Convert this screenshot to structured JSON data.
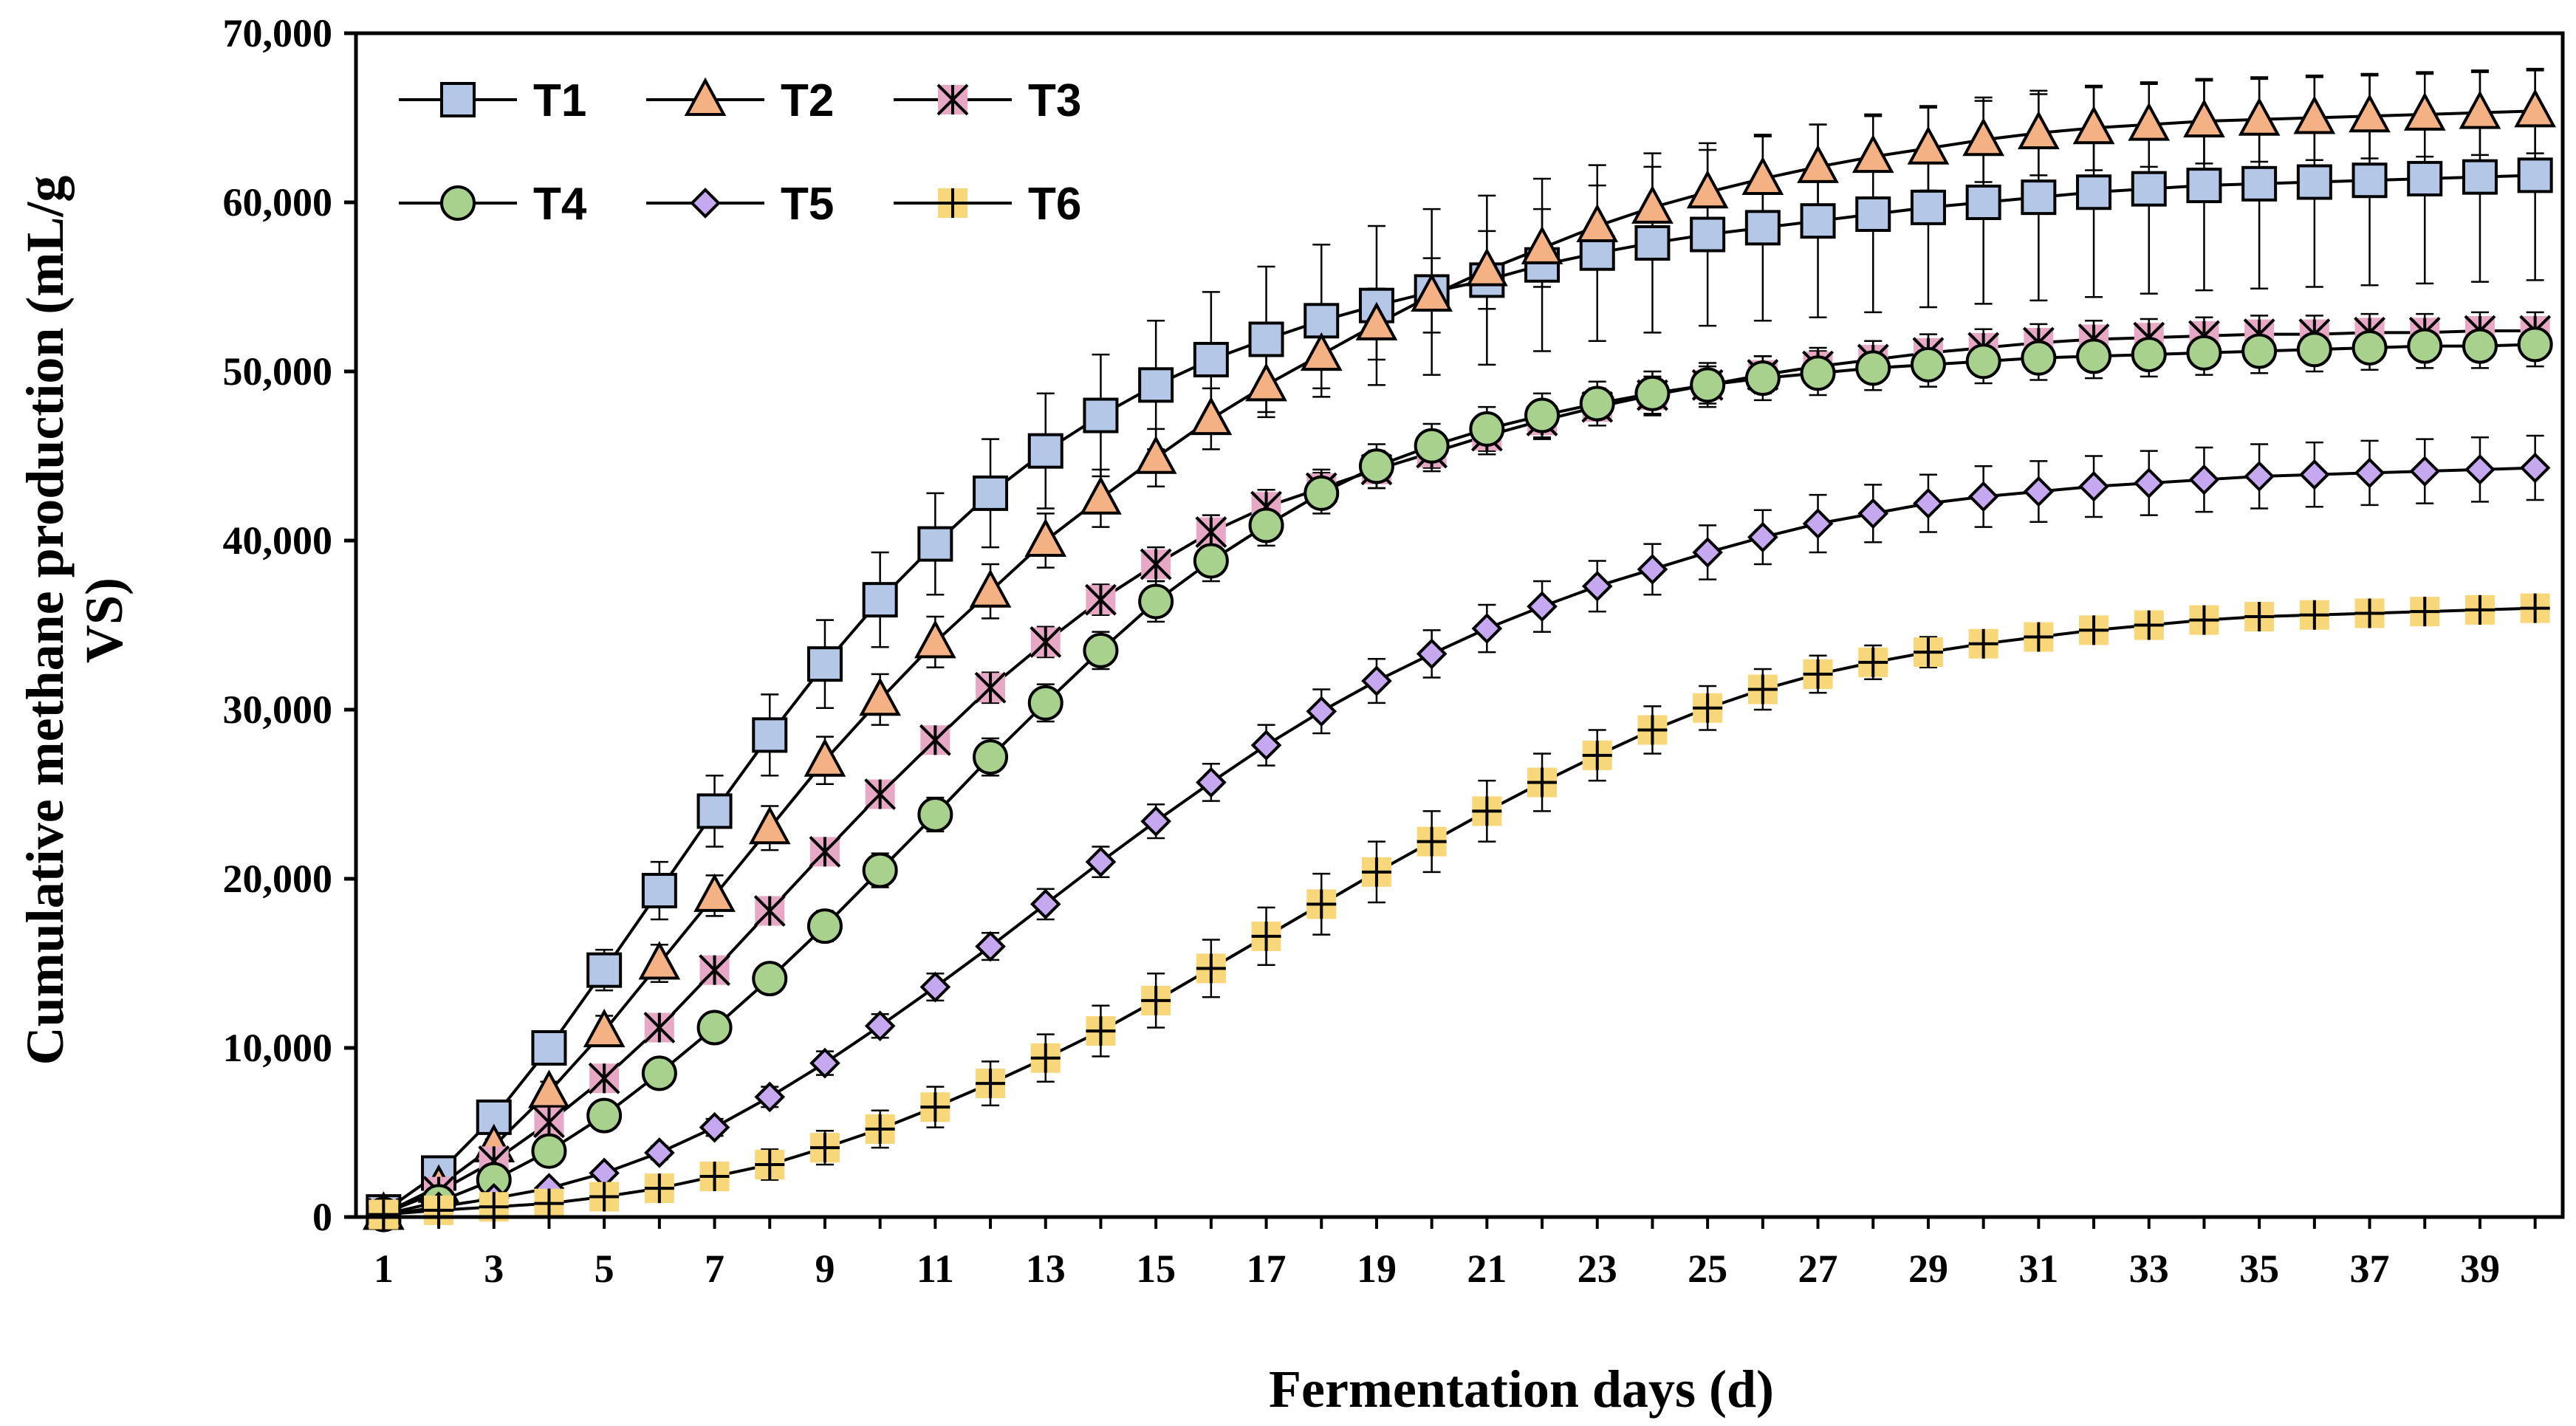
{
  "chart_data": {
    "type": "line",
    "title": "",
    "xlabel": "Fermentation days (d)",
    "ylabel_lines": [
      "Cumulative methane production (mL/g",
      "VS)"
    ],
    "xlim": [
      0.5,
      40.5
    ],
    "ylim": [
      0,
      70000
    ],
    "x_ticks": [
      1,
      3,
      5,
      7,
      9,
      11,
      13,
      15,
      17,
      19,
      21,
      23,
      25,
      27,
      29,
      31,
      33,
      35,
      37,
      39
    ],
    "x_tick_labels": [
      "1",
      "3",
      "5",
      "7",
      "9",
      "11",
      "13",
      "15",
      "17",
      "19",
      "21",
      "23",
      "25",
      "27",
      "29",
      "31",
      "33",
      "35",
      "37",
      "39"
    ],
    "y_ticks": [
      0,
      10000,
      20000,
      30000,
      40000,
      50000,
      60000,
      70000
    ],
    "y_tick_labels": [
      "0",
      "10,000",
      "20,000",
      "30,000",
      "40,000",
      "50,000",
      "60,000",
      "70,000"
    ],
    "grid": false,
    "legend_position": "top-left",
    "x": [
      1,
      2,
      3,
      4,
      5,
      6,
      7,
      8,
      9,
      10,
      11,
      12,
      13,
      14,
      15,
      16,
      17,
      18,
      19,
      20,
      21,
      22,
      23,
      24,
      25,
      26,
      27,
      28,
      29,
      30,
      31,
      32,
      33,
      34,
      35,
      36,
      37,
      38,
      39,
      40
    ],
    "series": [
      {
        "name": "T1",
        "marker": "square",
        "fill": "#b4c7e7",
        "values": [
          300,
          2600,
          5900,
          10000,
          14600,
          19300,
          24000,
          28500,
          32700,
          36500,
          39800,
          42800,
          45300,
          47400,
          49200,
          50700,
          51900,
          53000,
          53900,
          54700,
          55400,
          56300,
          57000,
          57600,
          58100,
          58500,
          58900,
          59300,
          59700,
          60000,
          60300,
          60600,
          60800,
          61000,
          61100,
          61200,
          61300,
          61400,
          61500,
          61600
        ],
        "errors": [
          300,
          300,
          400,
          800,
          1200,
          1700,
          2100,
          2400,
          2600,
          2800,
          3000,
          3200,
          3400,
          3600,
          3800,
          4000,
          4300,
          4500,
          4700,
          4900,
          5000,
          5100,
          5200,
          5300,
          5400,
          5500,
          5700,
          5800,
          5900,
          6000,
          6100,
          6200,
          6200,
          6200,
          6200,
          6200,
          6200,
          6200,
          6200,
          6200
        ]
      },
      {
        "name": "T2",
        "marker": "triangle",
        "fill": "#f4b183",
        "values": [
          200,
          1800,
          4200,
          7400,
          11000,
          15000,
          19000,
          23000,
          27000,
          30600,
          34000,
          37000,
          40000,
          42500,
          44900,
          47200,
          49200,
          51000,
          52800,
          54500,
          56000,
          57300,
          58600,
          59700,
          60600,
          61400,
          62100,
          62700,
          63200,
          63700,
          64100,
          64400,
          64600,
          64800,
          64900,
          65000,
          65100,
          65200,
          65300,
          65400
        ],
        "errors": [
          200,
          300,
          400,
          600,
          900,
          1100,
          1200,
          1300,
          1400,
          1500,
          1500,
          1600,
          1600,
          1700,
          1700,
          1800,
          1900,
          2000,
          2100,
          2200,
          2300,
          2300,
          2400,
          2400,
          2500,
          2500,
          2500,
          2500,
          2500,
          2500,
          2500,
          2500,
          2500,
          2500,
          2500,
          2500,
          2500,
          2500,
          2500,
          2500
        ]
      },
      {
        "name": "T3",
        "marker": "star",
        "fill": "#e6a8c4",
        "values": [
          200,
          1500,
          3300,
          5600,
          8200,
          11200,
          14600,
          18100,
          21600,
          25000,
          28200,
          31300,
          34000,
          36500,
          38600,
          40500,
          42000,
          43100,
          44200,
          45200,
          46200,
          47100,
          47900,
          48600,
          49200,
          49800,
          50300,
          50700,
          51100,
          51400,
          51700,
          51900,
          52000,
          52100,
          52200,
          52200,
          52300,
          52300,
          52400,
          52400
        ],
        "errors": [
          100,
          200,
          300,
          400,
          500,
          600,
          700,
          700,
          800,
          800,
          800,
          900,
          900,
          900,
          1000,
          1000,
          1000,
          1100,
          1100,
          1100,
          1100,
          1100,
          1100,
          1100,
          1100,
          1100,
          1100,
          1100,
          1100,
          1100,
          1100,
          1100,
          1100,
          1100,
          1100,
          1100,
          1100,
          1100,
          1100,
          1100
        ]
      },
      {
        "name": "T4",
        "marker": "circle",
        "fill": "#a9d18e",
        "values": [
          150,
          900,
          2200,
          3900,
          6000,
          8500,
          11200,
          14100,
          17200,
          20500,
          23800,
          27200,
          30400,
          33500,
          36400,
          38800,
          40900,
          42800,
          44400,
          45600,
          46600,
          47400,
          48100,
          48700,
          49200,
          49600,
          49900,
          50200,
          50400,
          50600,
          50800,
          50900,
          51000,
          51100,
          51200,
          51300,
          51400,
          51500,
          51500,
          51600
        ],
        "errors": [
          100,
          200,
          300,
          400,
          500,
          600,
          700,
          800,
          900,
          1000,
          1000,
          1100,
          1100,
          1100,
          1200,
          1200,
          1200,
          1200,
          1300,
          1300,
          1300,
          1300,
          1300,
          1300,
          1300,
          1300,
          1300,
          1300,
          1300,
          1300,
          1300,
          1300,
          1300,
          1300,
          1300,
          1300,
          1300,
          1300,
          1300,
          1300
        ]
      },
      {
        "name": "T5",
        "marker": "diamond",
        "fill": "#c5a8f0",
        "values": [
          100,
          600,
          1100,
          1700,
          2600,
          3800,
          5300,
          7100,
          9100,
          11300,
          13600,
          16000,
          18500,
          21000,
          23400,
          25700,
          27900,
          29900,
          31700,
          33300,
          34800,
          36100,
          37300,
          38300,
          39300,
          40200,
          41000,
          41600,
          42200,
          42600,
          42900,
          43200,
          43400,
          43600,
          43800,
          43900,
          44000,
          44100,
          44200,
          44300
        ],
        "errors": [
          100,
          100,
          200,
          200,
          300,
          400,
          500,
          600,
          700,
          700,
          800,
          800,
          900,
          900,
          1000,
          1100,
          1200,
          1300,
          1300,
          1400,
          1400,
          1500,
          1500,
          1500,
          1600,
          1600,
          1700,
          1700,
          1700,
          1800,
          1800,
          1800,
          1900,
          1900,
          1900,
          1900,
          1900,
          1900,
          1900,
          1900
        ]
      },
      {
        "name": "T6",
        "marker": "plus",
        "fill": "#f8d77a",
        "values": [
          150,
          400,
          600,
          800,
          1200,
          1700,
          2400,
          3100,
          4100,
          5200,
          6500,
          7900,
          9400,
          11000,
          12800,
          14700,
          16600,
          18500,
          20400,
          22200,
          24000,
          25700,
          27300,
          28800,
          30100,
          31200,
          32100,
          32800,
          33400,
          33900,
          34300,
          34700,
          35000,
          35300,
          35500,
          35600,
          35700,
          35800,
          35900,
          36000
        ],
        "errors": [
          200,
          300,
          300,
          400,
          500,
          600,
          700,
          900,
          1000,
          1100,
          1200,
          1300,
          1400,
          1500,
          1600,
          1700,
          1700,
          1800,
          1800,
          1800,
          1800,
          1700,
          1500,
          1400,
          1300,
          1200,
          1100,
          1000,
          900,
          800,
          700,
          600,
          500,
          500,
          500,
          500,
          500,
          500,
          500,
          500
        ]
      }
    ]
  }
}
